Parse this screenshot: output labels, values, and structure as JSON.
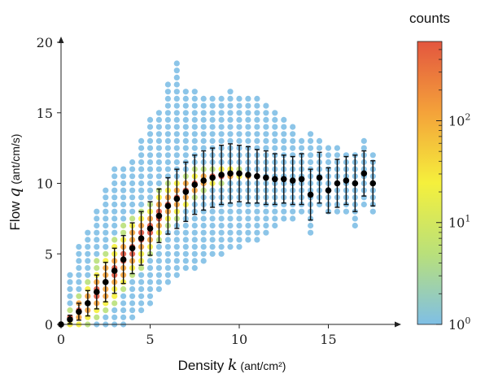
{
  "chart_data": {
    "type": "scatter",
    "title": "",
    "xlabel": {
      "prefix": "Density ",
      "var": "k",
      "unit": " (ant/cm²)"
    },
    "ylabel": {
      "prefix": "Flow ",
      "var": "q",
      "unit": " (ant/cm/s)"
    },
    "xlim": [
      0,
      18.5
    ],
    "ylim": [
      0,
      20
    ],
    "x_ticks": [
      "0",
      "5",
      "10",
      "15"
    ],
    "y_ticks": [
      "0",
      "5",
      "10",
      "15",
      "20"
    ],
    "grid": false,
    "colorbar": {
      "title": "counts",
      "scale": "log",
      "range": [
        1,
        600
      ],
      "ticks": [
        {
          "value": 1,
          "base": "10",
          "exp": "0"
        },
        {
          "value": 10,
          "base": "10",
          "exp": "1"
        },
        {
          "value": 100,
          "base": "10",
          "exp": "2"
        }
      ],
      "colors": [
        "#7fbfe6",
        "#b9e07a",
        "#f5f03c",
        "#f4a23a",
        "#e3563f"
      ]
    },
    "scatter_columns": [
      {
        "x": 0.5,
        "ymin": 0,
        "ymax": 3.5,
        "peak": 0.4,
        "core": 1.0
      },
      {
        "x": 1.0,
        "ymin": 0,
        "ymax": 5.5,
        "peak": 0.9,
        "core": 2.0
      },
      {
        "x": 1.5,
        "ymin": 0,
        "ymax": 6.5,
        "peak": 1.5,
        "core": 2.5
      },
      {
        "x": 2.0,
        "ymin": 0,
        "ymax": 8.0,
        "peak": 2.3,
        "core": 3.0
      },
      {
        "x": 2.5,
        "ymin": 0,
        "ymax": 9.5,
        "peak": 3.0,
        "core": 3.2
      },
      {
        "x": 3.0,
        "ymin": 0,
        "ymax": 11.0,
        "peak": 3.8,
        "core": 3.3
      },
      {
        "x": 3.5,
        "ymin": 0,
        "ymax": 11.0,
        "peak": 4.6,
        "core": 3.3
      },
      {
        "x": 4.0,
        "ymin": 0.5,
        "ymax": 11.5,
        "peak": 5.4,
        "core": 3.2
      },
      {
        "x": 4.5,
        "ymin": 1.0,
        "ymax": 13.0,
        "peak": 6.1,
        "core": 3.0
      },
      {
        "x": 5.0,
        "ymin": 1.5,
        "ymax": 14.5,
        "peak": 6.8,
        "core": 2.8
      },
      {
        "x": 5.5,
        "ymin": 2.5,
        "ymax": 15.0,
        "peak": 7.7,
        "core": 2.5
      },
      {
        "x": 6.0,
        "ymin": 3.0,
        "ymax": 17.0,
        "peak": 8.4,
        "core": 2.2
      },
      {
        "x": 6.5,
        "ymin": 3.5,
        "ymax": 18.5,
        "peak": 8.9,
        "core": 2.0
      },
      {
        "x": 7.0,
        "ymin": 4.0,
        "ymax": 16.5,
        "peak": 9.4,
        "core": 1.8
      },
      {
        "x": 7.5,
        "ymin": 4.0,
        "ymax": 16.5,
        "peak": 9.9,
        "core": 1.5
      },
      {
        "x": 8.0,
        "ymin": 4.5,
        "ymax": 16.0,
        "peak": 10.2,
        "core": 1.2
      },
      {
        "x": 8.5,
        "ymin": 5.0,
        "ymax": 16.0,
        "peak": 10.4,
        "core": 1.0
      },
      {
        "x": 9.0,
        "ymin": 5.0,
        "ymax": 16.0,
        "peak": 10.6,
        "core": 0.8
      },
      {
        "x": 9.5,
        "ymin": 5.5,
        "ymax": 16.5,
        "peak": 10.7,
        "core": 0.6
      },
      {
        "x": 10.0,
        "ymin": 5.5,
        "ymax": 16.0,
        "peak": 10.7,
        "core": 0.5
      },
      {
        "x": 10.5,
        "ymin": 6.0,
        "ymax": 16.0,
        "peak": 10.6,
        "core": 0.3
      },
      {
        "x": 11.0,
        "ymin": 6.0,
        "ymax": 16.0,
        "peak": 10.5,
        "core": 0.2
      },
      {
        "x": 11.5,
        "ymin": 6.5,
        "ymax": 15.5,
        "peak": 10.4,
        "core": 0
      },
      {
        "x": 12.0,
        "ymin": 7.0,
        "ymax": 15.0,
        "peak": 10.3,
        "core": 0
      },
      {
        "x": 12.5,
        "ymin": 7.5,
        "ymax": 14.5,
        "peak": 10.3,
        "core": 0
      },
      {
        "x": 13.0,
        "ymin": 7.5,
        "ymax": 14.0,
        "peak": 10.2,
        "core": 0
      },
      {
        "x": 13.5,
        "ymin": 8.0,
        "ymax": 13.0,
        "peak": 10.3,
        "core": 0
      },
      {
        "x": 14.0,
        "ymin": 6.5,
        "ymax": 13.5,
        "peak": 9.2,
        "core": 0
      },
      {
        "x": 14.5,
        "ymin": 8.5,
        "ymax": 13.0,
        "peak": 10.4,
        "core": 0
      },
      {
        "x": 15.0,
        "ymin": 8.0,
        "ymax": 12.5,
        "peak": 9.5,
        "core": 0
      },
      {
        "x": 15.5,
        "ymin": 8.0,
        "ymax": 12.5,
        "peak": 10.0,
        "core": 0
      },
      {
        "x": 16.0,
        "ymin": 8.0,
        "ymax": 12.0,
        "peak": 10.2,
        "core": 0
      },
      {
        "x": 16.5,
        "ymin": 7.0,
        "ymax": 12.0,
        "peak": 10.0,
        "core": 0
      },
      {
        "x": 17.0,
        "ymin": 8.5,
        "ymax": 13.0,
        "peak": 10.7,
        "core": 0
      },
      {
        "x": 17.5,
        "ymin": 8.0,
        "ymax": 12.0,
        "peak": 10.0,
        "core": 0
      }
    ],
    "series": [
      {
        "kind": "mean_with_error",
        "points": [
          {
            "x": 0.0,
            "y": 0.0,
            "err": 0
          },
          {
            "x": 0.5,
            "y": 0.35,
            "err": 0.3
          },
          {
            "x": 1.0,
            "y": 0.9,
            "err": 0.6
          },
          {
            "x": 1.5,
            "y": 1.5,
            "err": 0.9
          },
          {
            "x": 2.0,
            "y": 2.3,
            "err": 1.2
          },
          {
            "x": 2.5,
            "y": 3.0,
            "err": 1.4
          },
          {
            "x": 3.0,
            "y": 3.8,
            "err": 1.6
          },
          {
            "x": 3.5,
            "y": 4.6,
            "err": 1.7
          },
          {
            "x": 4.0,
            "y": 5.4,
            "err": 1.8
          },
          {
            "x": 4.5,
            "y": 6.1,
            "err": 1.9
          },
          {
            "x": 5.0,
            "y": 6.8,
            "err": 1.9
          },
          {
            "x": 5.5,
            "y": 7.7,
            "err": 1.9
          },
          {
            "x": 6.0,
            "y": 8.4,
            "err": 2.0
          },
          {
            "x": 6.5,
            "y": 8.9,
            "err": 2.1
          },
          {
            "x": 7.0,
            "y": 9.4,
            "err": 2.1
          },
          {
            "x": 7.5,
            "y": 9.9,
            "err": 2.1
          },
          {
            "x": 8.0,
            "y": 10.2,
            "err": 2.1
          },
          {
            "x": 8.5,
            "y": 10.4,
            "err": 2.1
          },
          {
            "x": 9.0,
            "y": 10.6,
            "err": 2.1
          },
          {
            "x": 9.5,
            "y": 10.7,
            "err": 2.1
          },
          {
            "x": 10.0,
            "y": 10.7,
            "err": 2.0
          },
          {
            "x": 10.5,
            "y": 10.6,
            "err": 2.0
          },
          {
            "x": 11.0,
            "y": 10.5,
            "err": 1.9
          },
          {
            "x": 11.5,
            "y": 10.4,
            "err": 1.9
          },
          {
            "x": 12.0,
            "y": 10.3,
            "err": 1.8
          },
          {
            "x": 12.5,
            "y": 10.3,
            "err": 1.7
          },
          {
            "x": 13.0,
            "y": 10.2,
            "err": 1.7
          },
          {
            "x": 13.5,
            "y": 10.3,
            "err": 1.8
          },
          {
            "x": 14.0,
            "y": 9.2,
            "err": 1.8
          },
          {
            "x": 14.5,
            "y": 10.4,
            "err": 1.8
          },
          {
            "x": 15.0,
            "y": 9.5,
            "err": 1.6
          },
          {
            "x": 15.5,
            "y": 10.0,
            "err": 1.7
          },
          {
            "x": 16.0,
            "y": 10.2,
            "err": 1.7
          },
          {
            "x": 16.5,
            "y": 10.0,
            "err": 2.0
          },
          {
            "x": 17.0,
            "y": 10.7,
            "err": 1.6
          },
          {
            "x": 17.5,
            "y": 10.0,
            "err": 1.6
          }
        ]
      }
    ]
  }
}
